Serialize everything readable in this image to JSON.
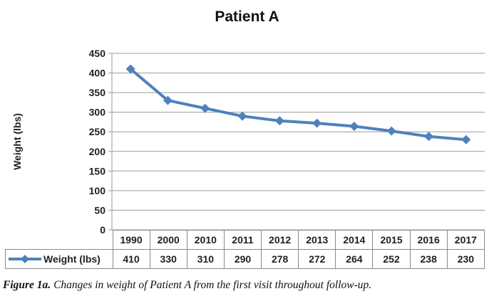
{
  "chart_data": {
    "type": "line",
    "title": "Patient A",
    "ylabel": "Weight (lbs)",
    "xlabel": "",
    "categories": [
      "1990",
      "2000",
      "2010",
      "2011",
      "2012",
      "2013",
      "2014",
      "2015",
      "2016",
      "2017"
    ],
    "series": [
      {
        "name": "Weight (lbs)",
        "values": [
          410,
          330,
          310,
          290,
          278,
          272,
          264,
          252,
          238,
          230
        ]
      }
    ],
    "ylim": [
      0,
      450
    ],
    "ytick_step": 50,
    "grid": true,
    "legend_position": "data-table-left",
    "marker": "diamond",
    "colors": {
      "series": "#4F81BD",
      "gridline": "#9a9a9a",
      "table_border": "#8a8a8a",
      "text": "#1f1f1f"
    }
  },
  "caption": {
    "label": "Figure 1a.",
    "text": "Changes in weight of Patient A from the first visit throughout follow-up."
  }
}
